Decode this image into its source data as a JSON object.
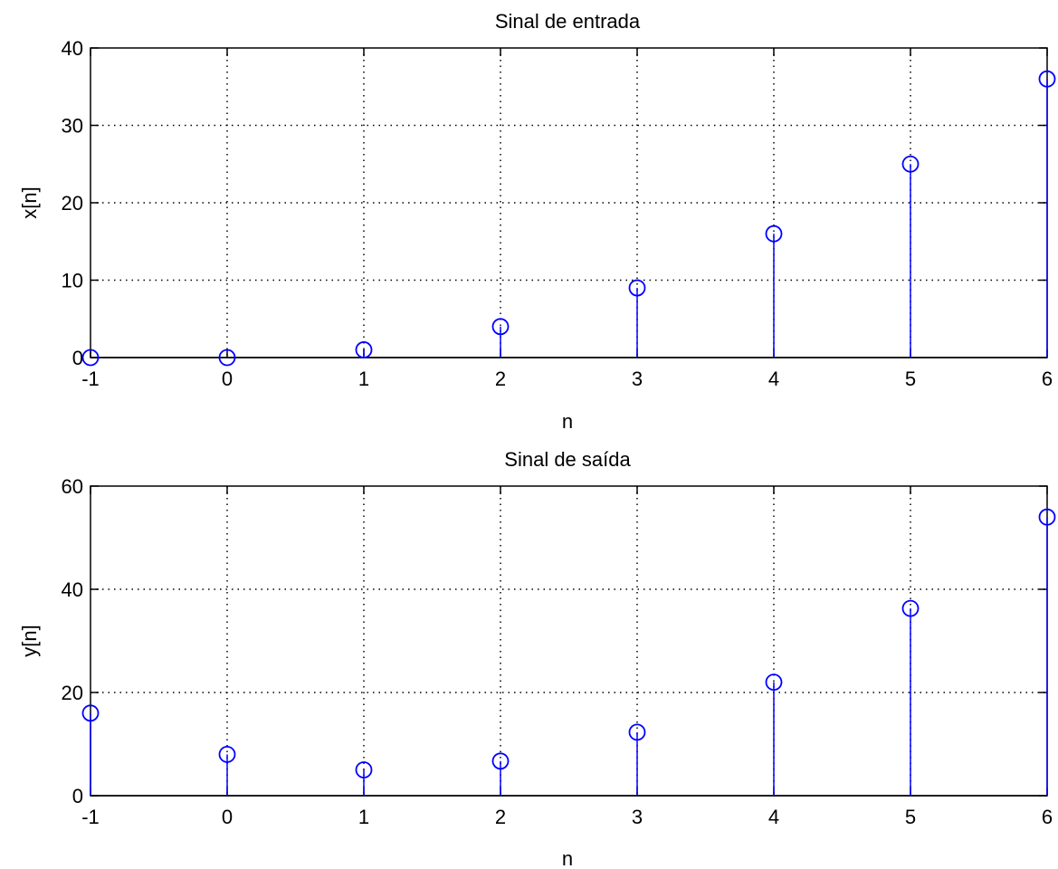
{
  "colors": {
    "stem": "#0000ff",
    "axes": "#000000",
    "grid": "#000000",
    "background": "#ffffff"
  },
  "chart_data": [
    {
      "type": "stem",
      "title": "Sinal de entrada",
      "xlabel": "n",
      "ylabel": "x[n]",
      "xlim": [
        -1,
        6
      ],
      "ylim": [
        0,
        40
      ],
      "xticks": [
        -1,
        0,
        1,
        2,
        3,
        4,
        5,
        6
      ],
      "yticks": [
        0,
        10,
        20,
        30,
        40
      ],
      "grid": true,
      "grid_style": "dotted",
      "marker": "circle",
      "x": [
        -1,
        0,
        1,
        2,
        3,
        4,
        5,
        6
      ],
      "values": [
        0,
        0,
        1,
        4,
        9,
        16,
        25,
        36
      ]
    },
    {
      "type": "stem",
      "title": "Sinal de saída",
      "xlabel": "n",
      "ylabel": "y[n]",
      "xlim": [
        -1,
        6
      ],
      "ylim": [
        0,
        60
      ],
      "xticks": [
        -1,
        0,
        1,
        2,
        3,
        4,
        5,
        6
      ],
      "yticks": [
        0,
        20,
        40,
        60
      ],
      "grid": true,
      "grid_style": "dotted",
      "marker": "circle",
      "x": [
        -1,
        0,
        1,
        2,
        3,
        4,
        5,
        6
      ],
      "values": [
        16,
        8,
        5,
        6.7,
        12.3,
        22,
        36.3,
        54
      ]
    }
  ]
}
